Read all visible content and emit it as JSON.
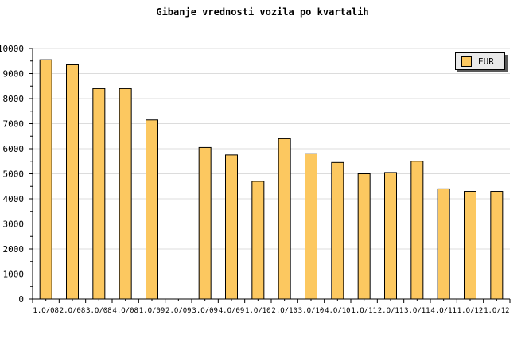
{
  "chart_data": {
    "type": "bar",
    "title": "Gibanje vrednosti vozila po kvartalih",
    "categories": [
      "1.Q/08",
      "2.Q/08",
      "3.Q/08",
      "4.Q/08",
      "1.Q/09",
      "2.Q/09",
      "3.Q/09",
      "4.Q/09",
      "1.Q/10",
      "2.Q/10",
      "3.Q/10",
      "4.Q/10",
      "1.Q/11",
      "2.Q/11",
      "3.Q/11",
      "4.Q/11",
      "1.Q/12",
      "1.Q/12"
    ],
    "series": [
      {
        "name": "EUR",
        "values": [
          9550,
          9350,
          8400,
          8400,
          7150,
          null,
          6050,
          5750,
          4700,
          6400,
          5800,
          5450,
          5000,
          5050,
          5500,
          4400,
          4300,
          4300
        ]
      }
    ],
    "xlabel": "",
    "ylabel": "",
    "ylim": [
      0,
      10000
    ],
    "ytick_major": 1000,
    "ytick_minor": 500,
    "grid": "horizontal-major",
    "legend": {
      "position": "top-right",
      "entries": [
        {
          "label": "EUR",
          "color": "#FCC860"
        }
      ]
    },
    "colors": {
      "bar_fill": "#FCC860",
      "bar_border": "#000000",
      "gridline": "#DCDCDC",
      "axis": "#000000",
      "text": "#000000",
      "legend_bg": "#E9E9E9",
      "legend_shadow": "#595959",
      "background": "#FFFFFF"
    }
  }
}
